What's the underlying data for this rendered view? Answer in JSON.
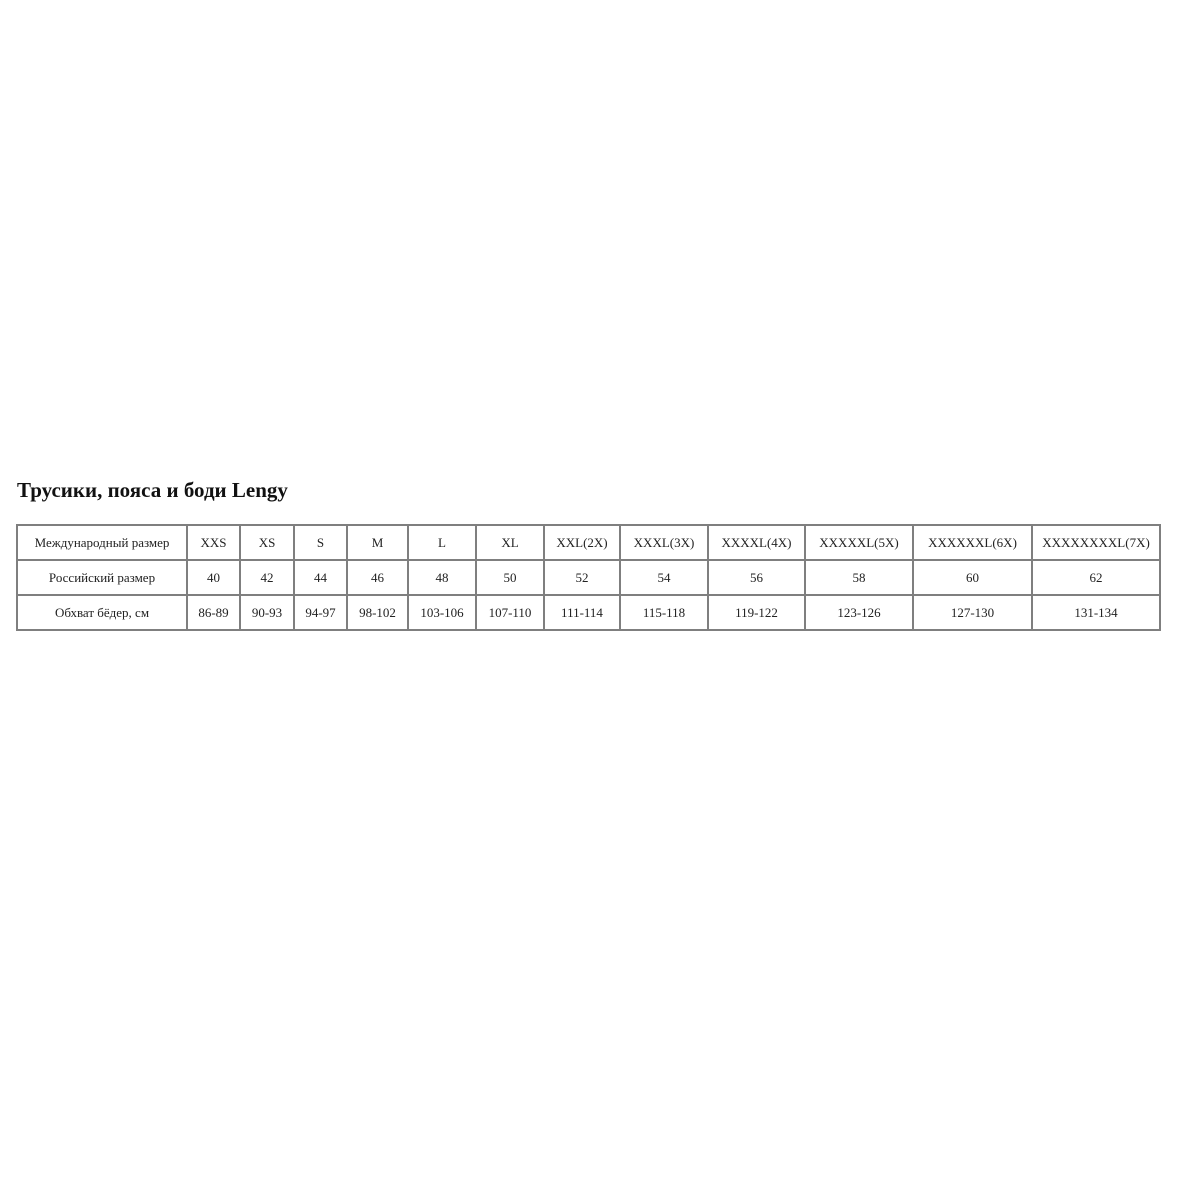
{
  "title": "Трусики, пояса и боди Lengy",
  "table": {
    "rows": [
      [
        "Международный размер",
        "XXS",
        "XS",
        "S",
        "M",
        "L",
        "XL",
        "XXL(2X)",
        "XXXL(3X)",
        "XXXXL(4X)",
        "XXXXXL(5X)",
        "XXXXXXL(6X)",
        "XXXXXXXXL(7X)"
      ],
      [
        "Российский размер",
        "40",
        "42",
        "44",
        "46",
        "48",
        "50",
        "52",
        "54",
        "56",
        "58",
        "60",
        "62"
      ],
      [
        "Обхват бёдер, см",
        "86-89",
        "90-93",
        "94-97",
        "98-102",
        "103-106",
        "107-110",
        "111-114",
        "115-118",
        "119-122",
        "123-126",
        "127-130",
        "131-134"
      ]
    ]
  }
}
